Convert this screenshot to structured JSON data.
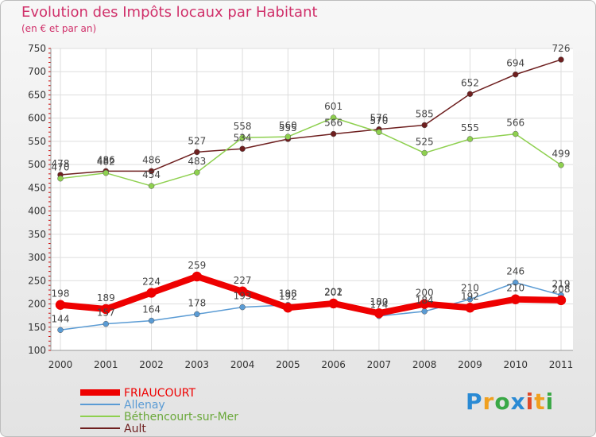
{
  "chart_data": {
    "type": "line",
    "title": "Evolution des Impôts locaux par Habitant",
    "subtitle": "(en € et par an)",
    "x": [
      "2000",
      "2001",
      "2002",
      "2003",
      "2004",
      "2005",
      "2006",
      "2007",
      "2008",
      "2009",
      "2010",
      "2011"
    ],
    "ylim": [
      100,
      750
    ],
    "yticks": [
      100,
      150,
      200,
      250,
      300,
      350,
      400,
      450,
      500,
      550,
      600,
      650,
      700,
      750
    ],
    "grid": true,
    "legend_position": "bottom-left",
    "series": [
      {
        "name": "FRIAUCOURT",
        "color": "#ee0000",
        "values": [
          198,
          189,
          224,
          259,
          227,
          192,
          201,
          180,
          200,
          192,
          210,
          208
        ]
      },
      {
        "name": "Allenay",
        "color": "#5a9bd4",
        "values": [
          144,
          157,
          164,
          178,
          193,
          198,
          202,
          174,
          184,
          210,
          246,
          219
        ]
      },
      {
        "name": "Béthencourt-sur-Mer",
        "color": "#8ed04f",
        "values": [
          470,
          482,
          454,
          483,
          558,
          560,
          601,
          570,
          525,
          555,
          566,
          499
        ]
      },
      {
        "name": "Ault",
        "color": "#6e1f1f",
        "values": [
          478,
          486,
          486,
          527,
          534,
          555,
          566,
          576,
          585,
          652,
          694,
          726
        ]
      }
    ]
  },
  "logo": {
    "p": "P",
    "r": "r",
    "o": "o",
    "x": "x",
    "i": "i",
    "t": "t",
    "i2": "i"
  }
}
